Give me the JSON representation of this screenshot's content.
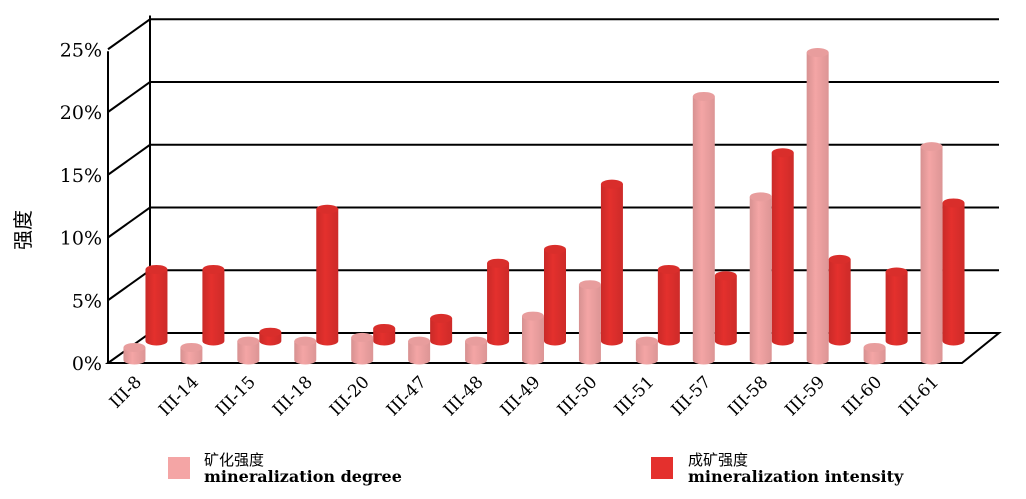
{
  "chart_data": {
    "type": "bar",
    "style": "3d-cylinder",
    "ylabel": "强度",
    "ylim": [
      0,
      25
    ],
    "yticks": [
      "0%",
      "5%",
      "10%",
      "15%",
      "20%",
      "25%"
    ],
    "categories": [
      "III-8",
      "III-14",
      "III-15",
      "III-18",
      "III-20",
      "III-47",
      "III-48",
      "III-49",
      "III-50",
      "III-51",
      "III-57",
      "III-58",
      "III-59",
      "III-60",
      "III-61"
    ],
    "series": [
      {
        "name_cn": "矿化强度",
        "name_en": "mineralization degree",
        "color": "#f4a5a5",
        "values": [
          1.0,
          1.0,
          1.5,
          1.5,
          1.8,
          1.5,
          1.5,
          3.5,
          6.0,
          1.5,
          21.0,
          13.0,
          24.5,
          1.0,
          17.0
        ]
      },
      {
        "name_cn": "成矿强度",
        "name_en": "mineralization intensity",
        "color": "#e4302d",
        "values": [
          5.7,
          5.7,
          0.7,
          10.5,
          1.0,
          1.8,
          6.2,
          7.3,
          12.5,
          5.7,
          5.2,
          15.0,
          6.5,
          5.5,
          11.0
        ]
      }
    ]
  }
}
